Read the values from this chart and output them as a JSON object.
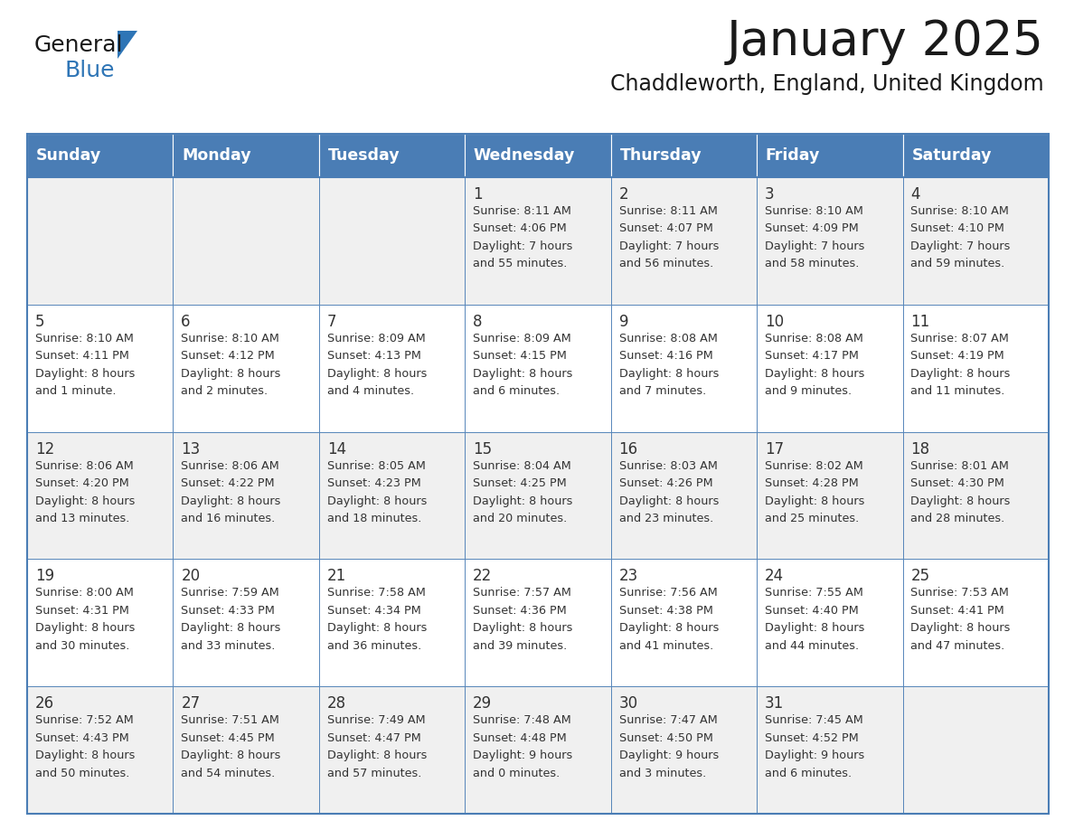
{
  "title": "January 2025",
  "subtitle": "Chaddleworth, England, United Kingdom",
  "days_of_week": [
    "Sunday",
    "Monday",
    "Tuesday",
    "Wednesday",
    "Thursday",
    "Friday",
    "Saturday"
  ],
  "header_bg": "#4a7db5",
  "header_text": "#FFFFFF",
  "cell_bg_odd": "#F0F0F0",
  "cell_bg_even": "#FFFFFF",
  "border_color": "#4a7db5",
  "day_number_color": "#333333",
  "cell_text_color": "#333333",
  "title_color": "#1a1a1a",
  "subtitle_color": "#1a1a1a",
  "logo_general_color": "#1a1a1a",
  "logo_blue_color": "#2E75B6",
  "calendar_data": [
    [
      {
        "day": null,
        "sunrise": null,
        "sunset": null,
        "daylight": null
      },
      {
        "day": null,
        "sunrise": null,
        "sunset": null,
        "daylight": null
      },
      {
        "day": null,
        "sunrise": null,
        "sunset": null,
        "daylight": null
      },
      {
        "day": 1,
        "sunrise": "8:11 AM",
        "sunset": "4:06 PM",
        "daylight": "7 hours and 55 minutes."
      },
      {
        "day": 2,
        "sunrise": "8:11 AM",
        "sunset": "4:07 PM",
        "daylight": "7 hours and 56 minutes."
      },
      {
        "day": 3,
        "sunrise": "8:10 AM",
        "sunset": "4:09 PM",
        "daylight": "7 hours and 58 minutes."
      },
      {
        "day": 4,
        "sunrise": "8:10 AM",
        "sunset": "4:10 PM",
        "daylight": "7 hours and 59 minutes."
      }
    ],
    [
      {
        "day": 5,
        "sunrise": "8:10 AM",
        "sunset": "4:11 PM",
        "daylight": "8 hours and 1 minute."
      },
      {
        "day": 6,
        "sunrise": "8:10 AM",
        "sunset": "4:12 PM",
        "daylight": "8 hours and 2 minutes."
      },
      {
        "day": 7,
        "sunrise": "8:09 AM",
        "sunset": "4:13 PM",
        "daylight": "8 hours and 4 minutes."
      },
      {
        "day": 8,
        "sunrise": "8:09 AM",
        "sunset": "4:15 PM",
        "daylight": "8 hours and 6 minutes."
      },
      {
        "day": 9,
        "sunrise": "8:08 AM",
        "sunset": "4:16 PM",
        "daylight": "8 hours and 7 minutes."
      },
      {
        "day": 10,
        "sunrise": "8:08 AM",
        "sunset": "4:17 PM",
        "daylight": "8 hours and 9 minutes."
      },
      {
        "day": 11,
        "sunrise": "8:07 AM",
        "sunset": "4:19 PM",
        "daylight": "8 hours and 11 minutes."
      }
    ],
    [
      {
        "day": 12,
        "sunrise": "8:06 AM",
        "sunset": "4:20 PM",
        "daylight": "8 hours and 13 minutes."
      },
      {
        "day": 13,
        "sunrise": "8:06 AM",
        "sunset": "4:22 PM",
        "daylight": "8 hours and 16 minutes."
      },
      {
        "day": 14,
        "sunrise": "8:05 AM",
        "sunset": "4:23 PM",
        "daylight": "8 hours and 18 minutes."
      },
      {
        "day": 15,
        "sunrise": "8:04 AM",
        "sunset": "4:25 PM",
        "daylight": "8 hours and 20 minutes."
      },
      {
        "day": 16,
        "sunrise": "8:03 AM",
        "sunset": "4:26 PM",
        "daylight": "8 hours and 23 minutes."
      },
      {
        "day": 17,
        "sunrise": "8:02 AM",
        "sunset": "4:28 PM",
        "daylight": "8 hours and 25 minutes."
      },
      {
        "day": 18,
        "sunrise": "8:01 AM",
        "sunset": "4:30 PM",
        "daylight": "8 hours and 28 minutes."
      }
    ],
    [
      {
        "day": 19,
        "sunrise": "8:00 AM",
        "sunset": "4:31 PM",
        "daylight": "8 hours and 30 minutes."
      },
      {
        "day": 20,
        "sunrise": "7:59 AM",
        "sunset": "4:33 PM",
        "daylight": "8 hours and 33 minutes."
      },
      {
        "day": 21,
        "sunrise": "7:58 AM",
        "sunset": "4:34 PM",
        "daylight": "8 hours and 36 minutes."
      },
      {
        "day": 22,
        "sunrise": "7:57 AM",
        "sunset": "4:36 PM",
        "daylight": "8 hours and 39 minutes."
      },
      {
        "day": 23,
        "sunrise": "7:56 AM",
        "sunset": "4:38 PM",
        "daylight": "8 hours and 41 minutes."
      },
      {
        "day": 24,
        "sunrise": "7:55 AM",
        "sunset": "4:40 PM",
        "daylight": "8 hours and 44 minutes."
      },
      {
        "day": 25,
        "sunrise": "7:53 AM",
        "sunset": "4:41 PM",
        "daylight": "8 hours and 47 minutes."
      }
    ],
    [
      {
        "day": 26,
        "sunrise": "7:52 AM",
        "sunset": "4:43 PM",
        "daylight": "8 hours and 50 minutes."
      },
      {
        "day": 27,
        "sunrise": "7:51 AM",
        "sunset": "4:45 PM",
        "daylight": "8 hours and 54 minutes."
      },
      {
        "day": 28,
        "sunrise": "7:49 AM",
        "sunset": "4:47 PM",
        "daylight": "8 hours and 57 minutes."
      },
      {
        "day": 29,
        "sunrise": "7:48 AM",
        "sunset": "4:48 PM",
        "daylight": "9 hours and 0 minutes."
      },
      {
        "day": 30,
        "sunrise": "7:47 AM",
        "sunset": "4:50 PM",
        "daylight": "9 hours and 3 minutes."
      },
      {
        "day": 31,
        "sunrise": "7:45 AM",
        "sunset": "4:52 PM",
        "daylight": "9 hours and 6 minutes."
      },
      {
        "day": null,
        "sunrise": null,
        "sunset": null,
        "daylight": null
      }
    ]
  ]
}
